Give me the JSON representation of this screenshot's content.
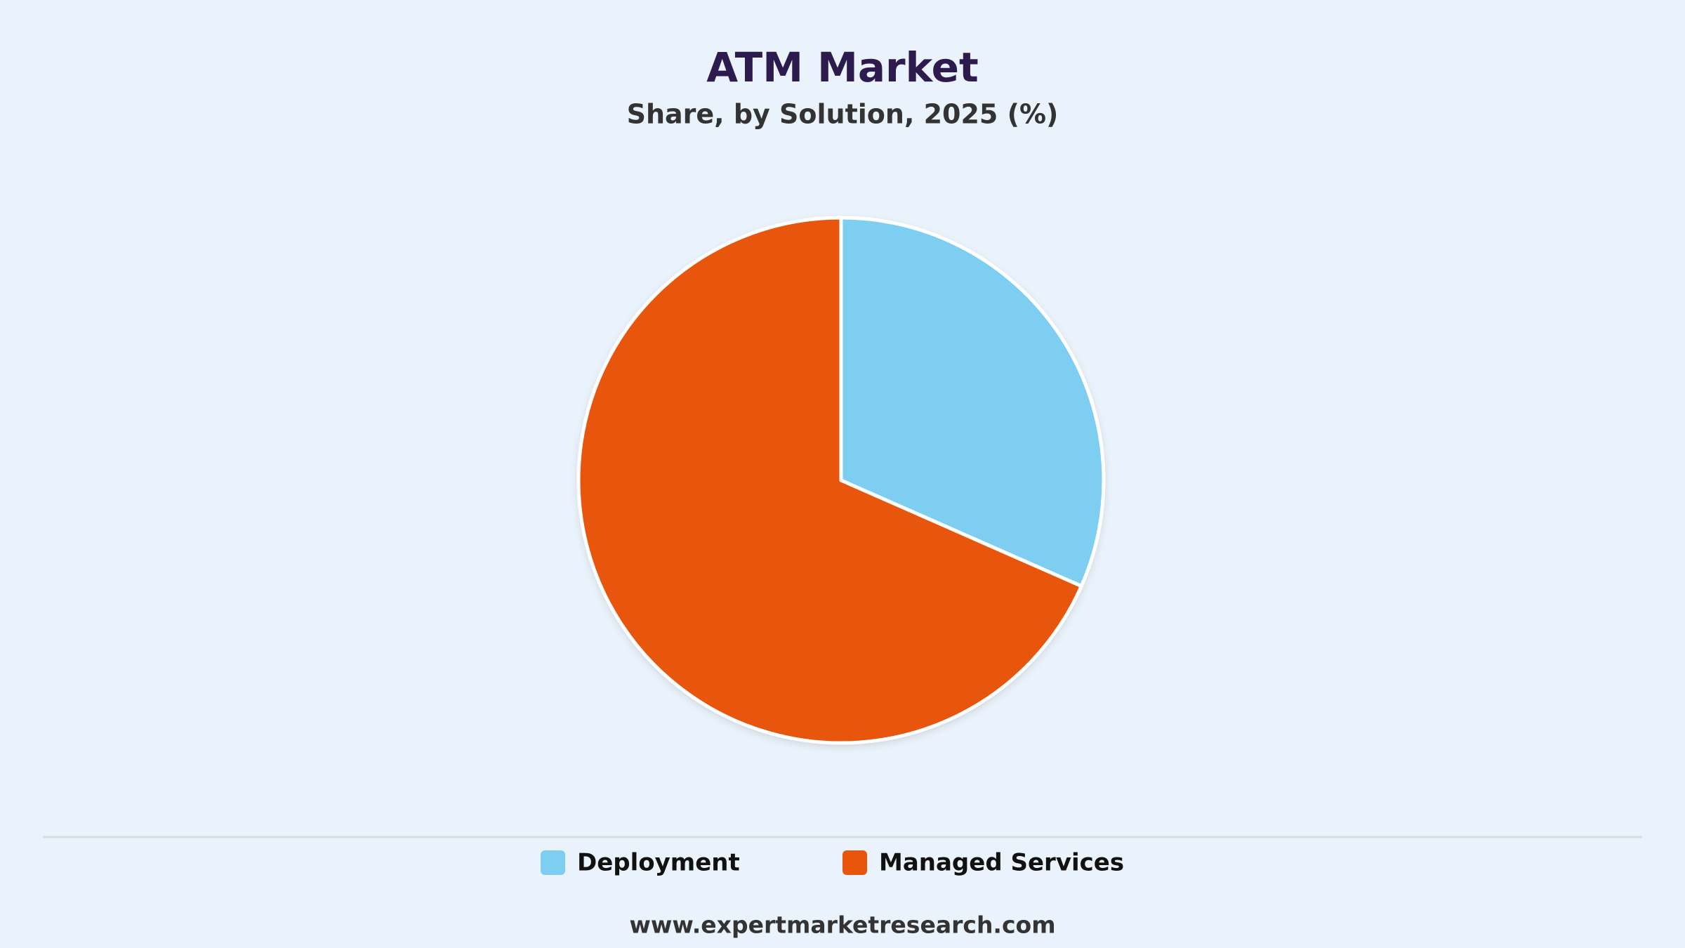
{
  "chart_data": {
    "type": "pie",
    "title": "ATM Market",
    "subtitle": "Share, by Solution, 2025 (%)",
    "categories": [
      "Deployment",
      "Managed Services"
    ],
    "values": [
      31.6,
      68.4
    ],
    "colors": [
      "#7ecef2",
      "#e8560e"
    ],
    "source": "www.expertmarketresearch.com"
  }
}
